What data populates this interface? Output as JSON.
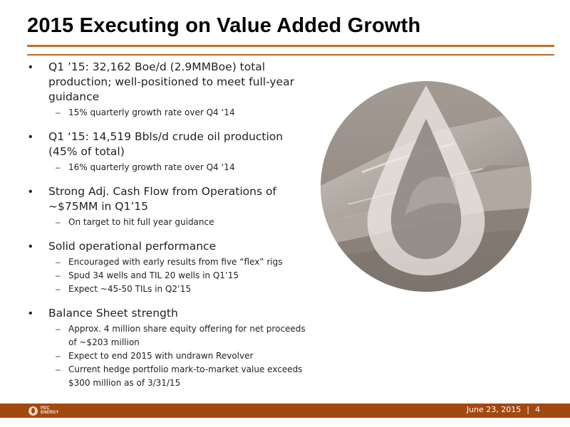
{
  "slide": {
    "title": "2015 Executing on Value Added Growth"
  },
  "bullets": [
    {
      "text": "Q1 ’15: 32,162 Boe/d (2.9MMBoe) total production; well-positioned to meet full-year guidance",
      "subs": [
        "15% quarterly growth rate over Q4 ‘14"
      ]
    },
    {
      "text": "Q1 ‘15: 14,519 Bbls/d crude oil production (45% of total)",
      "subs": [
        "16% quarterly growth rate over Q4 ‘14"
      ]
    },
    {
      "text": "Strong Adj. Cash Flow from Operations of ~$75MM in Q1’15",
      "subs": [
        "On target to hit full year guidance"
      ]
    },
    {
      "text": "Solid operational performance",
      "subs": [
        "Encouraged with early results from five “flex” rigs",
        "Spud 34 wells and TIL 20 wells in Q1’15",
        "Expect ~45-50 TILs in Q2’15"
      ]
    },
    {
      "text": "Balance Sheet strength",
      "subs": [
        "Approx. 4 million share equity offering for net proceeds of ~$203 million",
        "Expect to end 2015 with undrawn Revolver",
        "Current hedge portfolio mark-to-market value exceeds $300 million as of 3/31/15"
      ]
    }
  ],
  "footer": {
    "logo_text": "PDC ENERGY",
    "date": "June 23, 2015",
    "separator": "|",
    "page_number": "4"
  },
  "colors": {
    "accent": "#a2490f",
    "rule": "#c0712a"
  },
  "image": {
    "icon": "oil-drop-landscape-icon"
  }
}
